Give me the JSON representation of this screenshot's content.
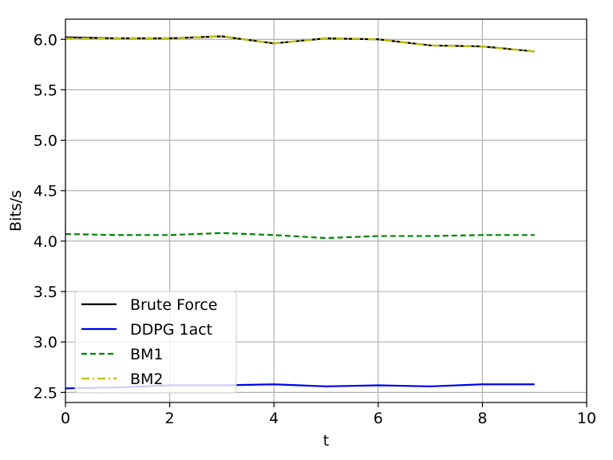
{
  "chart_data": {
    "type": "line",
    "title": "",
    "xlabel": "t",
    "ylabel": "Bits/s",
    "xlim": [
      0,
      10
    ],
    "ylim": [
      2.4,
      6.2
    ],
    "xticks": [
      0,
      2,
      4,
      6,
      8,
      10
    ],
    "yticks": [
      2.5,
      3.0,
      3.5,
      4.0,
      4.5,
      5.0,
      5.5,
      6.0
    ],
    "xtick_labels": [
      "0",
      "2",
      "4",
      "6",
      "8",
      "10"
    ],
    "ytick_labels": [
      "2.5",
      "3.0",
      "3.5",
      "4.0",
      "4.5",
      "5.0",
      "5.5",
      "6.0"
    ],
    "grid": true,
    "legend_position": "lower-left",
    "x": [
      0,
      1,
      2,
      3,
      4,
      5,
      6,
      7,
      8,
      9
    ],
    "series": [
      {
        "name": "Brute Force",
        "color": "#000000",
        "style": "solid",
        "values": [
          6.02,
          6.01,
          6.01,
          6.03,
          5.96,
          6.01,
          6.0,
          5.94,
          5.93,
          5.88
        ]
      },
      {
        "name": "DDPG 1act",
        "color": "#0000ee",
        "style": "solid",
        "values": [
          2.54,
          2.55,
          2.57,
          2.57,
          2.58,
          2.56,
          2.57,
          2.56,
          2.58,
          2.58
        ]
      },
      {
        "name": "BM1",
        "color": "#008000",
        "style": "dashed",
        "values": [
          4.07,
          4.06,
          4.06,
          4.08,
          4.06,
          4.03,
          4.05,
          4.05,
          4.06,
          4.06
        ]
      },
      {
        "name": "BM2",
        "color": "#bfbf00",
        "style": "dashdot",
        "values": [
          6.01,
          6.01,
          6.01,
          6.03,
          5.96,
          6.01,
          6.0,
          5.94,
          5.93,
          5.88
        ]
      }
    ]
  }
}
